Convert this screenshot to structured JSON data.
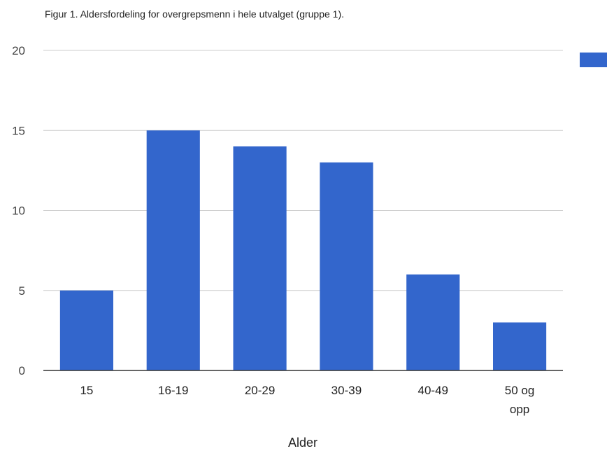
{
  "chart_data": {
    "type": "bar",
    "title": "Figur 1. Aldersfordeling for overgrepsmenn i hele utvalget (gruppe 1).",
    "xlabel": "Alder",
    "ylabel": "",
    "categories": [
      "15",
      "16-19",
      "20-29",
      "30-39",
      "40-49",
      "50 og opp"
    ],
    "values": [
      5,
      15,
      14,
      13,
      6,
      3
    ],
    "yticks": [
      0,
      5,
      10,
      15,
      20
    ],
    "ylim": [
      0,
      20
    ],
    "grid": true,
    "legend": {
      "position": "right",
      "label": ""
    },
    "colors": {
      "bar": "#3366cc",
      "grid": "#cccccc",
      "baseline": "#333333"
    }
  }
}
